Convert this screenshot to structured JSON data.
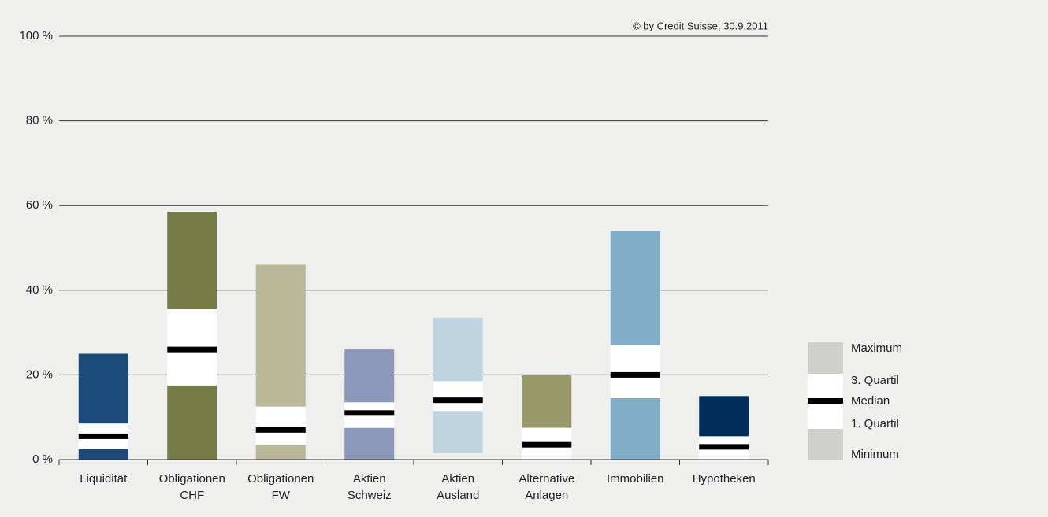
{
  "chart_data": {
    "type": "box",
    "source": "© by Credit Suisse, 30.9.2011",
    "categories": [
      [
        "Liquidität"
      ],
      [
        "Obligationen",
        "CHF"
      ],
      [
        "Obligationen",
        "FW"
      ],
      [
        "Aktien",
        "Schweiz"
      ],
      [
        "Aktien",
        "Ausland"
      ],
      [
        "Alternative",
        "Anlagen"
      ],
      [
        "Immobilien"
      ],
      [
        "Hypotheken"
      ]
    ],
    "colors": [
      "#1b4b78",
      "#767b45",
      "#b8b797",
      "#8b98b9",
      "#bed5e1",
      "#989868",
      "#80aec8",
      "#002f5c"
    ],
    "boxes": [
      {
        "min": 0,
        "q1": 2.5,
        "median": 5.5,
        "q3": 8.5,
        "max": 25
      },
      {
        "min": 0,
        "q1": 17.5,
        "median": 26,
        "q3": 35.5,
        "max": 58.5
      },
      {
        "min": 0,
        "q1": 3.5,
        "median": 7,
        "q3": 12.5,
        "max": 46
      },
      {
        "min": 0,
        "q1": 7.5,
        "median": 11,
        "q3": 13.5,
        "max": 26
      },
      {
        "min": 1.5,
        "q1": 11.5,
        "median": 14,
        "q3": 18.5,
        "max": 33.5
      },
      {
        "min": 0,
        "q1": 0,
        "median": 3.5,
        "q3": 7.5,
        "max": 20
      },
      {
        "min": 0,
        "q1": 14.5,
        "median": 20,
        "q3": 27,
        "max": 54
      },
      {
        "min": 0,
        "q1": 0,
        "median": 3,
        "q3": 5.5,
        "max": 15
      }
    ],
    "legend": [
      "Maximum",
      "3. Quartil",
      "Median",
      "1. Quartil",
      "Minimum"
    ],
    "legend_color": "#cfcfcb",
    "ylim": [
      0,
      100
    ],
    "yticks": [
      {
        "value": 0,
        "label": "0 %"
      },
      {
        "value": 20,
        "label": "20 %"
      },
      {
        "value": 40,
        "label": "40 %"
      },
      {
        "value": 60,
        "label": "60 %"
      },
      {
        "value": 80,
        "label": "80 %"
      },
      {
        "value": 100,
        "label": "100 %"
      }
    ],
    "grid": true
  }
}
